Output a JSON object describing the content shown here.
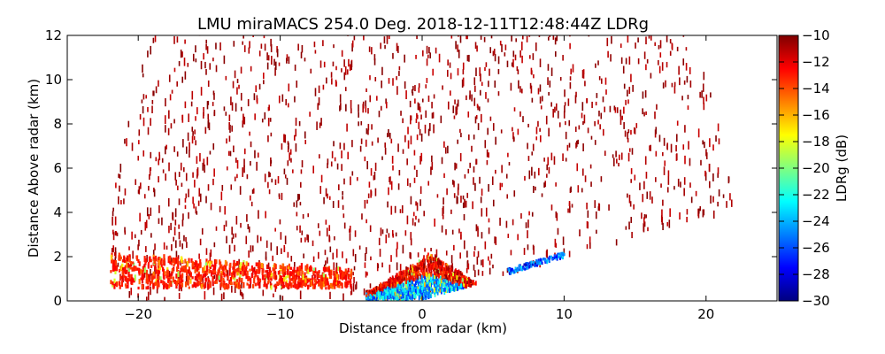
{
  "chart_data": {
    "type": "heatmap",
    "title": "LMU miraMACS 254.0 Deg. 2018-12-11T12:48:44Z  LDRg",
    "xlabel": "Distance from radar (km)",
    "ylabel": "Distance Above radar  (km)",
    "xlim": [
      -25,
      25
    ],
    "ylim": [
      0,
      12
    ],
    "xticks": [
      -20,
      -10,
      0,
      10,
      20
    ],
    "yticks": [
      0,
      2,
      4,
      6,
      8,
      10,
      12
    ],
    "grid": false,
    "colorbar": {
      "label": "LDRg (dB)",
      "range": [
        -30,
        -10
      ],
      "ticks": [
        -10,
        -12,
        -14,
        -16,
        -18,
        -20,
        -22,
        -24,
        -26,
        -28,
        -30
      ],
      "colormap": "jet"
    },
    "regions": [
      {
        "name": "background speckle",
        "x_range": [
          -22,
          22
        ],
        "y_range": [
          0,
          12
        ],
        "ldr_dB": -10
      },
      {
        "name": "low layer band",
        "x_range": [
          -22,
          -5
        ],
        "y_range": [
          0.5,
          2.0
        ],
        "ldr_dB": -12
      },
      {
        "name": "near-field clutter",
        "x_range": [
          -4,
          5
        ],
        "y_range": [
          0,
          2.0
        ],
        "ldr_dB": -24
      },
      {
        "name": "ground edge streak",
        "x_range": [
          6,
          10
        ],
        "y_range": [
          1.3,
          2.2
        ],
        "ldr_dB": -26
      }
    ]
  }
}
